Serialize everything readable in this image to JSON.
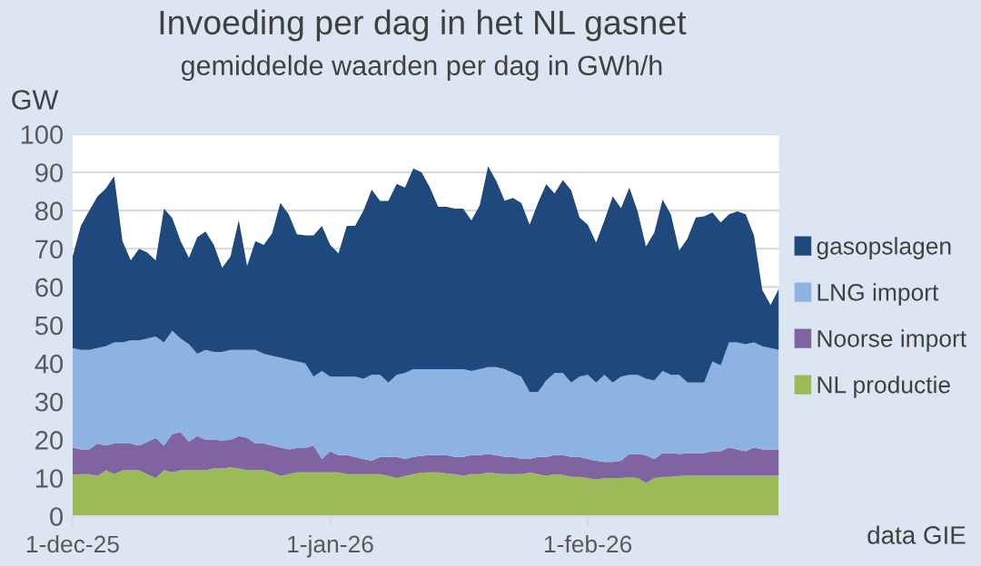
{
  "chart_data": {
    "type": "area",
    "stacked": true,
    "title": "Invoeding per dag in het NL gasnet",
    "subtitle": "gemiddelde waarden per dag in GWh/h",
    "ylabel": "GW",
    "x": [
      "2025-12-01",
      "2025-12-02",
      "2025-12-03",
      "2025-12-04",
      "2025-12-05",
      "2025-12-06",
      "2025-12-07",
      "2025-12-08",
      "2025-12-09",
      "2025-12-10",
      "2025-12-11",
      "2025-12-12",
      "2025-12-13",
      "2025-12-14",
      "2025-12-15",
      "2025-12-16",
      "2025-12-17",
      "2025-12-18",
      "2025-12-19",
      "2025-12-20",
      "2025-12-21",
      "2025-12-22",
      "2025-12-23",
      "2025-12-24",
      "2025-12-25",
      "2025-12-26",
      "2025-12-27",
      "2025-12-28",
      "2025-12-29",
      "2025-12-30",
      "2025-12-31",
      "2026-01-01",
      "2026-01-02",
      "2026-01-03",
      "2026-01-04",
      "2026-01-05",
      "2026-01-06",
      "2026-01-07",
      "2026-01-08",
      "2026-01-09",
      "2026-01-10",
      "2026-01-11",
      "2026-01-12",
      "2026-01-13",
      "2026-01-14",
      "2026-01-15",
      "2026-01-16",
      "2026-01-17",
      "2026-01-18",
      "2026-01-19",
      "2026-01-20",
      "2026-01-21",
      "2026-01-22",
      "2026-01-23",
      "2026-01-24",
      "2026-01-25",
      "2026-01-26",
      "2026-01-27",
      "2026-01-28",
      "2026-01-29",
      "2026-01-30",
      "2026-01-31",
      "2026-02-01",
      "2026-02-02",
      "2026-02-03",
      "2026-02-04",
      "2026-02-05",
      "2026-02-06",
      "2026-02-07",
      "2026-02-08",
      "2026-02-09",
      "2026-02-10",
      "2026-02-11",
      "2026-02-12",
      "2026-02-13",
      "2026-02-14",
      "2026-02-15",
      "2026-02-16",
      "2026-02-17",
      "2026-02-18",
      "2026-02-19",
      "2026-02-20",
      "2026-02-21",
      "2026-02-22",
      "2026-02-23",
      "2026-02-24"
    ],
    "series": [
      {
        "name": "NL productie",
        "color": "#9bbb59",
        "values": [
          10.8,
          11,
          11,
          10.5,
          12,
          11,
          12,
          12,
          12,
          11,
          10,
          12,
          11.5,
          12,
          12,
          12,
          12,
          12.5,
          12.5,
          12.8,
          12.5,
          12,
          12,
          12,
          11.5,
          10.5,
          11,
          11.5,
          11.5,
          11.5,
          11.5,
          11.5,
          11.5,
          11,
          11,
          11,
          11,
          11,
          10.5,
          10,
          10.5,
          11,
          11.4,
          11.5,
          11.5,
          11.2,
          11,
          10.6,
          11,
          11,
          11.4,
          11.2,
          11,
          11,
          11,
          11.4,
          11,
          10.6,
          11,
          10.8,
          10.3,
          10.3,
          10,
          9.6,
          10,
          10,
          10,
          10.2,
          10,
          8.7,
          10,
          10.3,
          10.3,
          10.5,
          10.6,
          10.6,
          10.6,
          10.6,
          10.6,
          10.6,
          10.6,
          10.6,
          10.6,
          10.6,
          10.6,
          10.6
        ]
      },
      {
        "name": "Noorse import",
        "color": "#8064a2",
        "values": [
          7.2,
          6.5,
          6.5,
          8.5,
          6.5,
          8,
          7,
          7,
          6.5,
          8.5,
          10.5,
          6.5,
          10,
          10,
          7.5,
          9,
          8,
          7.5,
          7.3,
          7.2,
          8.5,
          8.5,
          7,
          7,
          7,
          7.5,
          6.5,
          6.3,
          6.3,
          7,
          3.5,
          5.5,
          4.5,
          5,
          4.5,
          4,
          3.5,
          4.5,
          5,
          5.5,
          4.5,
          4.5,
          4.4,
          4.5,
          4.5,
          4.8,
          4.5,
          4.9,
          5,
          5,
          4.9,
          4.8,
          4.5,
          4.5,
          4,
          3.6,
          4.5,
          4.9,
          5,
          5.2,
          5.2,
          5.2,
          5,
          4.9,
          4.2,
          4.2,
          4.5,
          6.1,
          6.3,
          7.3,
          5,
          6.2,
          6.2,
          5.8,
          5.9,
          5.9,
          5.9,
          6.4,
          6.4,
          7.4,
          6.9,
          6.4,
          7.4,
          6.9,
          6.9,
          6.9
        ]
      },
      {
        "name": "LNG import",
        "color": "#8db3e2",
        "values": [
          26,
          26,
          26,
          25,
          26,
          26.5,
          26.5,
          27,
          27.5,
          27,
          26.5,
          27,
          27,
          24.5,
          25.5,
          21.5,
          23.5,
          23,
          23.2,
          23.5,
          22.5,
          23,
          24.5,
          23.5,
          23.5,
          23.5,
          23.5,
          22.7,
          22.2,
          18,
          23,
          19.5,
          20.5,
          20.5,
          21,
          21,
          22.5,
          21.5,
          19.5,
          21.5,
          22.5,
          23,
          22.7,
          22.5,
          22.5,
          22.5,
          23,
          23,
          22,
          22.5,
          22.7,
          23,
          23,
          22,
          21.5,
          17.5,
          17,
          20,
          21.5,
          21.5,
          19.5,
          21,
          22,
          20.5,
          22.8,
          20.8,
          22,
          20.7,
          20.7,
          20,
          20.5,
          21.5,
          20.5,
          20.7,
          18.5,
          18.5,
          18.5,
          23.5,
          22.5,
          27.5,
          28,
          28,
          27.5,
          27,
          26.5,
          26
        ]
      },
      {
        "name": "gasopslagen",
        "color": "#1f497d",
        "values": [
          24,
          32.5,
          36.5,
          39.7,
          41.3,
          43.5,
          26.5,
          21,
          24,
          22.5,
          20,
          35,
          29.5,
          25.5,
          22.6,
          30.5,
          31,
          28,
          22,
          24.5,
          34,
          22,
          28.5,
          28.5,
          32,
          40.5,
          38,
          33.3,
          33.5,
          37,
          38,
          34.5,
          32.3,
          39.5,
          39.5,
          44,
          48.5,
          45.5,
          47.5,
          50,
          48.5,
          52.5,
          51.5,
          47.5,
          42.5,
          42.5,
          42,
          42,
          39.4,
          42.9,
          52.6,
          48.7,
          44.1,
          45.8,
          45.5,
          43.8,
          49.5,
          51.4,
          47,
          50.5,
          50.3,
          41.7,
          39.3,
          36.6,
          40.4,
          48.7,
          44.1,
          49,
          42.8,
          34.6,
          38.7,
          44.9,
          42,
          32.5,
          37.7,
          43.2,
          43.5,
          39,
          37.4,
          33.5,
          34.3,
          34,
          28,
          14.7,
          11.3,
          16.1
        ]
      }
    ],
    "xlim": [
      "2025-12-01",
      "2026-02-24"
    ],
    "xticks": [
      {
        "value": "2025-12-01",
        "label": "1-dec-25"
      },
      {
        "value": "2026-01-01",
        "label": "1-jan-26"
      },
      {
        "value": "2026-02-01",
        "label": "1-feb-26"
      }
    ],
    "ylim": [
      0,
      100
    ],
    "yticks": [
      0,
      10,
      20,
      30,
      40,
      50,
      60,
      70,
      80,
      90,
      100
    ],
    "grid": "y",
    "legend": "right",
    "annotations": [
      "data GIE"
    ]
  }
}
